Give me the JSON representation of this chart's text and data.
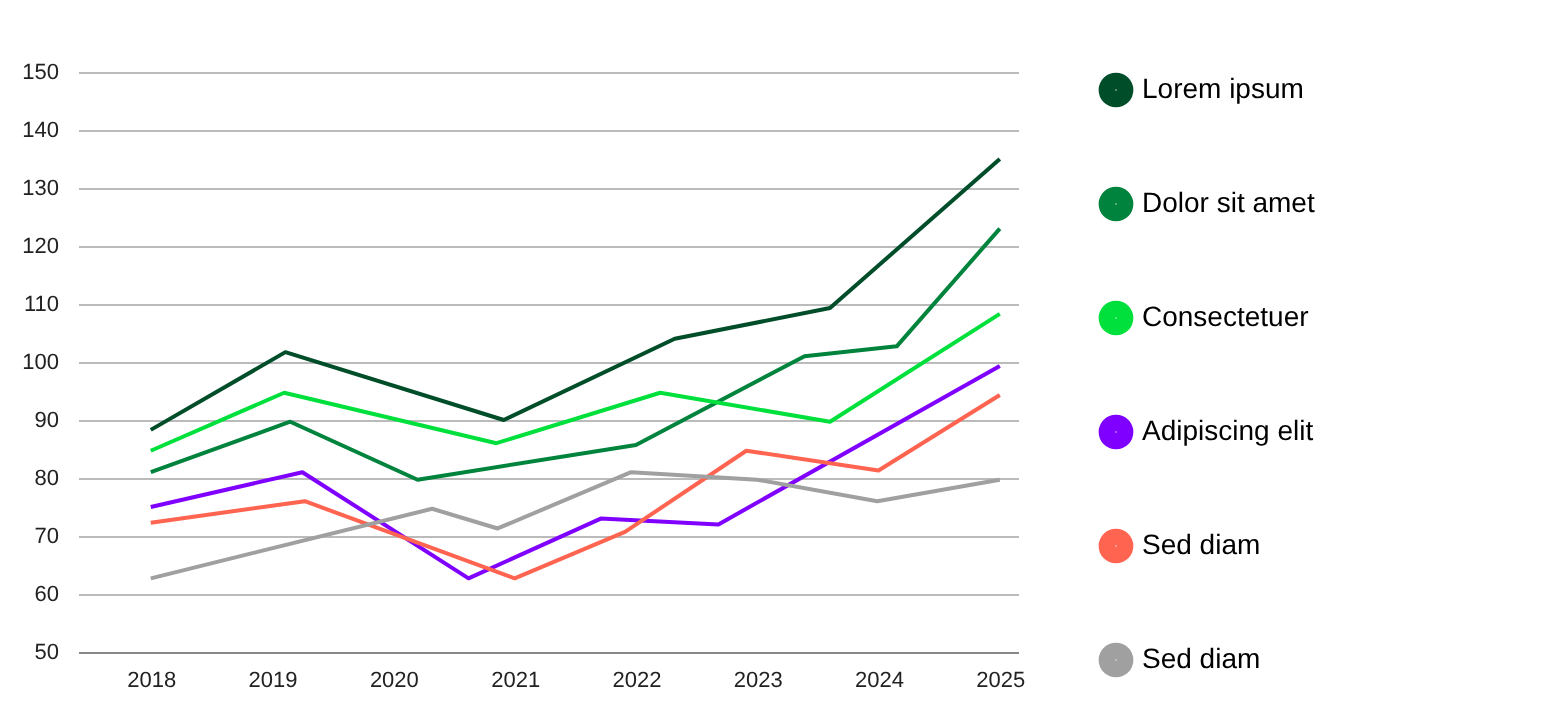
{
  "chart_data": {
    "type": "line",
    "xlim": [
      2017.4,
      2025.15
    ],
    "xticks": [
      2018,
      2019,
      2020,
      2021,
      2022,
      2023,
      2024,
      2025
    ],
    "ylim": [
      50,
      150
    ],
    "yticks": [
      50,
      60,
      70,
      80,
      90,
      100,
      110,
      120,
      130,
      140,
      150
    ],
    "grid": "y",
    "legend": "right",
    "marker": "none",
    "line_style": "solid",
    "series": [
      {
        "name": "Lorem ipsum",
        "color": "#004d2a",
        "x": [
          2018,
          2019.11,
          2020.91,
          2022.32,
          2023.6,
          2025
        ],
        "values": [
          88.3,
          101.7,
          90,
          104,
          109.3,
          135
        ]
      },
      {
        "name": "Dolor sit amet",
        "color": "#00843d",
        "x": [
          2018,
          2019.15,
          2020.2,
          2022.0,
          2023.39,
          2024.15,
          2025
        ],
        "values": [
          81,
          89.7,
          79.7,
          85.7,
          101,
          102.7,
          123
        ]
      },
      {
        "name": "Consectetuer",
        "color": "#00e03c",
        "x": [
          2018,
          2019.1,
          2020.85,
          2022.2,
          2023.6,
          2025
        ],
        "values": [
          84.7,
          94.7,
          86,
          94.7,
          89.7,
          108.3
        ]
      },
      {
        "name": "Adipiscing elit",
        "color": "#8000ff",
        "x": [
          2018,
          2019.25,
          2020.62,
          2021.71,
          2022.68,
          2025
        ],
        "values": [
          75,
          81,
          62.7,
          73,
          72,
          99.3
        ]
      },
      {
        "name": "Sed diam",
        "color": "#ff6450",
        "x": [
          2018,
          2019.27,
          2021.0,
          2021.91,
          2022.91,
          2024.0,
          2025
        ],
        "values": [
          72.3,
          76,
          62.7,
          70.7,
          84.7,
          81.3,
          94.3
        ]
      },
      {
        "name": "Sed diam",
        "color": "#a0a0a0",
        "x": [
          2018,
          2020.32,
          2020.86,
          2021.96,
          2023.0,
          2023.99,
          2025
        ],
        "values": [
          62.7,
          74.7,
          71.3,
          81,
          79.7,
          76,
          79.7
        ]
      }
    ]
  }
}
